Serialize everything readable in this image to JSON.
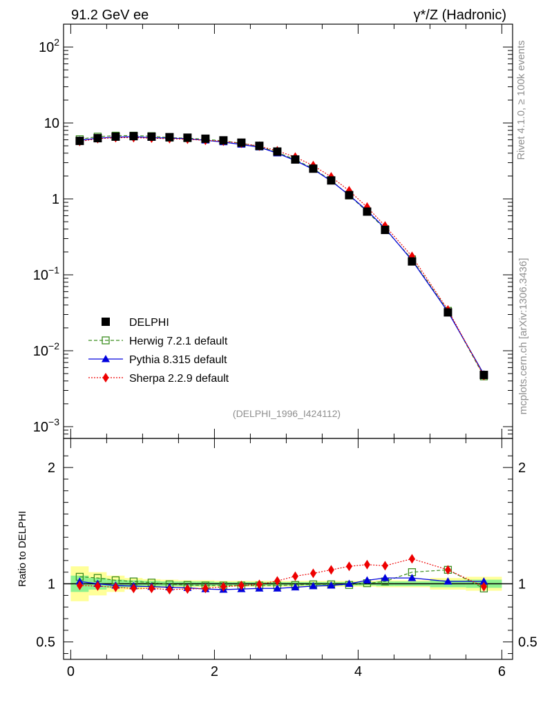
{
  "header": {
    "left": "91.2 GeV ee",
    "right": "γ*/Z (Hadronic)"
  },
  "side_labels": {
    "rivet": "Rivet 4.1.0, ≥ 100k events",
    "mcplots": "mcplots.cern.ch [arXiv:1306.3436]"
  },
  "watermark": "(DELPHI_1996_I424112)",
  "colors": {
    "data": "#000000",
    "herwig": "#3a8d1e",
    "pythia": "#0000dd",
    "sherpa": "#ee0000",
    "band_inner": "#8ff28f",
    "band_outer": "#ffff99"
  },
  "legend": [
    {
      "key": "data",
      "label": "DELPHI"
    },
    {
      "key": "herwig",
      "label": "Herwig 7.2.1 default"
    },
    {
      "key": "pythia",
      "label": "Pythia 8.315 default"
    },
    {
      "key": "sherpa",
      "label": "Sherpa 2.2.9 default"
    }
  ],
  "chart_data": [
    {
      "type": "line",
      "panel": "main",
      "yscale": "log",
      "xlim": [
        -0.1,
        6.15
      ],
      "ylim": [
        0.0007,
        200
      ],
      "ytick_labels": [
        "10^-3",
        "10^-2",
        "10^-1",
        "1",
        "10",
        "10^2"
      ],
      "x": [
        0.125,
        0.375,
        0.625,
        0.875,
        1.125,
        1.375,
        1.625,
        1.875,
        2.125,
        2.375,
        2.625,
        2.875,
        3.125,
        3.375,
        3.625,
        3.875,
        4.125,
        4.375,
        4.75,
        5.25,
        5.75
      ],
      "series": [
        {
          "name": "DELPHI",
          "key": "data",
          "values": [
            5.8,
            6.3,
            6.6,
            6.7,
            6.6,
            6.5,
            6.4,
            6.2,
            5.9,
            5.5,
            5.0,
            4.2,
            3.3,
            2.5,
            1.75,
            1.12,
            0.68,
            0.39,
            0.15,
            0.032,
            0.0048
          ]
        },
        {
          "name": "Herwig 7.2.1 default",
          "key": "herwig",
          "values": [
            6.1,
            6.6,
            6.8,
            6.8,
            6.7,
            6.4,
            6.3,
            6.1,
            5.8,
            5.4,
            4.9,
            4.1,
            3.3,
            2.5,
            1.75,
            1.11,
            0.68,
            0.4,
            0.16,
            0.0335,
            0.0046
          ]
        },
        {
          "name": "Pythia 8.315 default",
          "key": "pythia",
          "values": [
            5.9,
            6.3,
            6.5,
            6.6,
            6.4,
            6.3,
            6.2,
            5.9,
            5.6,
            5.2,
            4.8,
            4.0,
            3.2,
            2.45,
            1.72,
            1.12,
            0.7,
            0.41,
            0.155,
            0.0325,
            0.0049
          ]
        },
        {
          "name": "Sherpa 2.2.9 default",
          "key": "sherpa",
          "values": [
            5.7,
            6.2,
            6.4,
            6.4,
            6.3,
            6.2,
            6.1,
            5.9,
            5.75,
            5.4,
            4.95,
            4.3,
            3.55,
            2.75,
            1.95,
            1.28,
            0.78,
            0.44,
            0.175,
            0.0345,
            0.0047
          ]
        }
      ]
    },
    {
      "type": "line",
      "panel": "ratio",
      "ylabel": "Ratio to DELPHI",
      "xlim": [
        -0.1,
        6.15
      ],
      "ylim": [
        0.35,
        2.25
      ],
      "xticks": [
        0,
        2,
        4,
        6
      ],
      "xtick_labels": [
        "0",
        "2",
        "4",
        "6"
      ],
      "yticks": [
        0.5,
        1,
        2
      ],
      "ytick_labels": [
        "0.5",
        "1",
        "2"
      ],
      "bins": [
        [
          0.0,
          0.25
        ],
        [
          0.25,
          0.5
        ],
        [
          0.5,
          0.75
        ],
        [
          0.75,
          1.0
        ],
        [
          1.0,
          1.25
        ],
        [
          1.25,
          1.5
        ],
        [
          1.5,
          1.75
        ],
        [
          1.75,
          2.0
        ],
        [
          2.0,
          2.25
        ],
        [
          2.25,
          2.5
        ],
        [
          2.5,
          2.75
        ],
        [
          2.75,
          3.0
        ],
        [
          3.0,
          3.25
        ],
        [
          3.25,
          3.5
        ],
        [
          3.5,
          3.75
        ],
        [
          3.75,
          4.0
        ],
        [
          4.0,
          4.25
        ],
        [
          4.25,
          4.5
        ],
        [
          4.5,
          5.0
        ],
        [
          5.0,
          5.5
        ],
        [
          5.5,
          6.0
        ]
      ],
      "band_inner": [
        0.07,
        0.05,
        0.035,
        0.03,
        0.025,
        0.02,
        0.02,
        0.02,
        0.015,
        0.015,
        0.015,
        0.015,
        0.015,
        0.015,
        0.015,
        0.015,
        0.015,
        0.02,
        0.02,
        0.03,
        0.035
      ],
      "band_outer": [
        0.15,
        0.1,
        0.07,
        0.05,
        0.04,
        0.035,
        0.03,
        0.03,
        0.025,
        0.025,
        0.025,
        0.025,
        0.025,
        0.025,
        0.025,
        0.025,
        0.025,
        0.03,
        0.03,
        0.05,
        0.06
      ],
      "x": [
        0.125,
        0.375,
        0.625,
        0.875,
        1.125,
        1.375,
        1.625,
        1.875,
        2.125,
        2.375,
        2.625,
        2.875,
        3.125,
        3.375,
        3.625,
        3.875,
        4.125,
        4.375,
        4.75,
        5.25,
        5.75
      ],
      "series": [
        {
          "name": "Herwig 7.2.1 default",
          "key": "herwig",
          "values": [
            1.06,
            1.05,
            1.03,
            1.02,
            1.01,
            0.995,
            0.99,
            0.985,
            0.985,
            0.985,
            0.985,
            0.985,
            0.99,
            0.995,
            0.995,
            0.99,
            1.005,
            1.02,
            1.1,
            1.12,
            0.96
          ]
        },
        {
          "name": "Pythia 8.315 default",
          "key": "pythia",
          "values": [
            1.02,
            1.0,
            0.985,
            0.98,
            0.975,
            0.97,
            0.965,
            0.955,
            0.95,
            0.955,
            0.96,
            0.96,
            0.97,
            0.98,
            0.985,
            1.0,
            1.03,
            1.05,
            1.05,
            1.02,
            1.02
          ]
        },
        {
          "name": "Sherpa 2.2.9 default",
          "key": "sherpa",
          "values": [
            0.985,
            0.98,
            0.97,
            0.96,
            0.96,
            0.95,
            0.955,
            0.96,
            0.975,
            0.985,
            0.995,
            1.025,
            1.065,
            1.09,
            1.12,
            1.15,
            1.165,
            1.155,
            1.215,
            1.12,
            0.975
          ]
        }
      ]
    }
  ]
}
